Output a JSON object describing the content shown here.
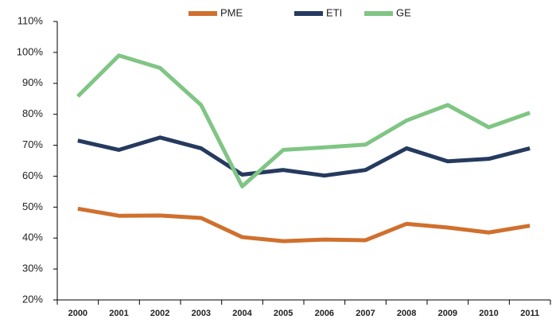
{
  "chart_data": {
    "type": "line",
    "categories": [
      "2000",
      "2001",
      "2002",
      "2003",
      "2004",
      "2005",
      "2006",
      "2007",
      "2008",
      "2009",
      "2010",
      "2011"
    ],
    "series": [
      {
        "name": "PME",
        "color": "#d0702e",
        "values": [
          49.5,
          47.2,
          47.3,
          46.5,
          40.3,
          39,
          39.5,
          39.3,
          44.6,
          43.4,
          41.8,
          44
        ]
      },
      {
        "name": "ETI",
        "color": "#253a5e",
        "values": [
          71.5,
          68.5,
          72.5,
          69,
          60.5,
          62,
          60.2,
          62,
          69,
          64.8,
          65.6,
          69
        ]
      },
      {
        "name": "GE",
        "color": "#80c584",
        "values": [
          85.8,
          99,
          95,
          83,
          56.7,
          68.5,
          69.3,
          70.2,
          78,
          83,
          75.8,
          80.5
        ]
      }
    ],
    "ylim": [
      20,
      110
    ],
    "yticks": [
      {
        "value": 20,
        "label": "20%"
      },
      {
        "value": 30,
        "label": "30%"
      },
      {
        "value": 40,
        "label": "40%"
      },
      {
        "value": 50,
        "label": "50%"
      },
      {
        "value": 60,
        "label": "60%"
      },
      {
        "value": 70,
        "label": "70%"
      },
      {
        "value": 80,
        "label": "80%"
      },
      {
        "value": 90,
        "label": "90%"
      },
      {
        "value": 100,
        "label": "100%"
      },
      {
        "value": 110,
        "label": "110%"
      }
    ],
    "grid": false,
    "legend": "top"
  }
}
